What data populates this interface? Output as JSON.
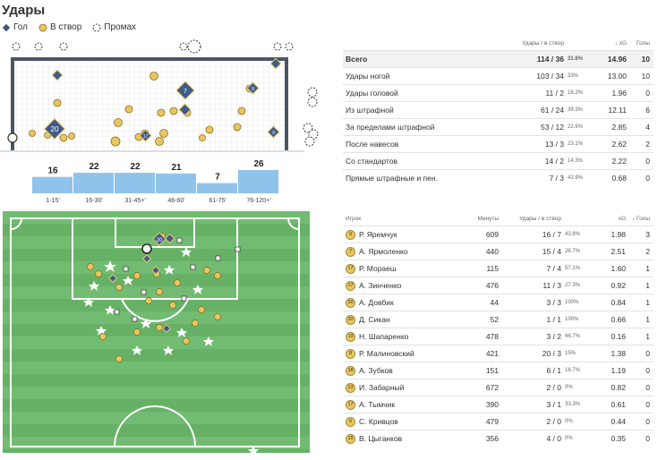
{
  "title": "Удары",
  "legend": [
    {
      "label": "Гол",
      "icon": "goal-diamond-icon"
    },
    {
      "label": "В створ",
      "icon": "on-target-circle-icon"
    },
    {
      "label": "Промах",
      "icon": "missed-dashed-circle-icon"
    }
  ],
  "colors": {
    "goal": "#3f5b87",
    "on_target": "#e8c661",
    "pitch": "#6fb86f",
    "bar": "#8fc3ea"
  },
  "periods": [
    {
      "label": "1-15'",
      "value": 16
    },
    {
      "label": "16-30'",
      "value": 22
    },
    {
      "label": "31-45+'",
      "value": 22
    },
    {
      "label": "46-60'",
      "value": 21
    },
    {
      "label": "61-75'",
      "value": 7
    },
    {
      "label": "76-120+'",
      "value": 26
    }
  ],
  "goal_labels": {
    "a": "7",
    "b": "9",
    "c": "20",
    "d": "17",
    "e": "9",
    "pitch": "20"
  },
  "stats": {
    "headers": {
      "shots": "Удары / в створ",
      "xg": "↓ xG",
      "goals": "Голы"
    },
    "rows": [
      {
        "name": "Всего",
        "shots": "114 / 36",
        "pct": "31.6%",
        "xg": "14.96",
        "goals": "10"
      },
      {
        "name": "Удары ногой",
        "shots": "103 / 34",
        "pct": "33%",
        "xg": "13.00",
        "goals": "10"
      },
      {
        "name": "Удары головой",
        "shots": "11 / 2",
        "pct": "18.2%",
        "xg": "1.96",
        "goals": "0"
      },
      {
        "name": "Из штрафной",
        "shots": "61 / 24",
        "pct": "39.3%",
        "xg": "12.11",
        "goals": "6"
      },
      {
        "name": "За пределами штрафной",
        "shots": "53 / 12",
        "pct": "22.6%",
        "xg": "2.85",
        "goals": "4"
      },
      {
        "name": "После навесов",
        "shots": "13 / 3",
        "pct": "23.1%",
        "xg": "2.62",
        "goals": "2"
      },
      {
        "name": "Со стандартов",
        "shots": "14 / 2",
        "pct": "14.3%",
        "xg": "2.22",
        "goals": "0"
      },
      {
        "name": "Прямые штрафные и пен.",
        "shots": "7 / 3",
        "pct": "42.9%",
        "xg": "0.68",
        "goals": "0"
      }
    ]
  },
  "players": {
    "headers": {
      "player": "Игрок",
      "minutes": "Минуты",
      "shots": "Удары / в створ",
      "xg": "xG",
      "goals": "↓ Голы"
    },
    "rows": [
      {
        "num": "9",
        "name": "Р. Яремчук",
        "minutes": "609",
        "shots": "16 / 7",
        "pct": "43.8%",
        "xg": "1.98",
        "goals": "3"
      },
      {
        "num": "7",
        "name": "А. Ярмоленко",
        "minutes": "440",
        "shots": "15 / 4",
        "pct": "26.7%",
        "xg": "2.51",
        "goals": "2"
      },
      {
        "num": "17",
        "name": "Р. Мораеш",
        "minutes": "115",
        "shots": "7 / 4",
        "pct": "57.1%",
        "xg": "1.60",
        "goals": "1"
      },
      {
        "num": "17",
        "name": "А. Зинченко",
        "minutes": "476",
        "shots": "11 / 3",
        "pct": "27.3%",
        "xg": "0.92",
        "goals": "1"
      },
      {
        "num": "20",
        "name": "А. Довбик",
        "minutes": "44",
        "shots": "3 / 3",
        "pct": "100%",
        "xg": "0.84",
        "goals": "1"
      },
      {
        "num": "20",
        "name": "Д. Сикан",
        "minutes": "52",
        "shots": "1 / 1",
        "pct": "100%",
        "xg": "0.66",
        "goals": "1"
      },
      {
        "num": "19",
        "name": "Н. Шапаренко",
        "minutes": "478",
        "shots": "3 / 2",
        "pct": "66.7%",
        "xg": "0.16",
        "goals": "1"
      },
      {
        "num": "8",
        "name": "Р. Малиновский",
        "minutes": "421",
        "shots": "20 / 3",
        "pct": "15%",
        "xg": "1.38",
        "goals": "0"
      },
      {
        "num": "18",
        "name": "А. Зубков",
        "minutes": "151",
        "shots": "6 / 1",
        "pct": "16.7%",
        "xg": "1.19",
        "goals": "0"
      },
      {
        "num": "13",
        "name": "И. Забарный",
        "minutes": "672",
        "shots": "2 / 0",
        "pct": "0%",
        "xg": "0.82",
        "goals": "0"
      },
      {
        "num": "17",
        "name": "А. Тымчик",
        "minutes": "390",
        "shots": "3 / 1",
        "pct": "33.3%",
        "xg": "0.61",
        "goals": "0"
      },
      {
        "num": "6",
        "name": "С. Кривцов",
        "minutes": "479",
        "shots": "2 / 0",
        "pct": "0%",
        "xg": "0.44",
        "goals": "0"
      },
      {
        "num": "15",
        "name": "В. Цыганков",
        "minutes": "356",
        "shots": "4 / 0",
        "pct": "0%",
        "xg": "0.35",
        "goals": "0"
      }
    ]
  }
}
